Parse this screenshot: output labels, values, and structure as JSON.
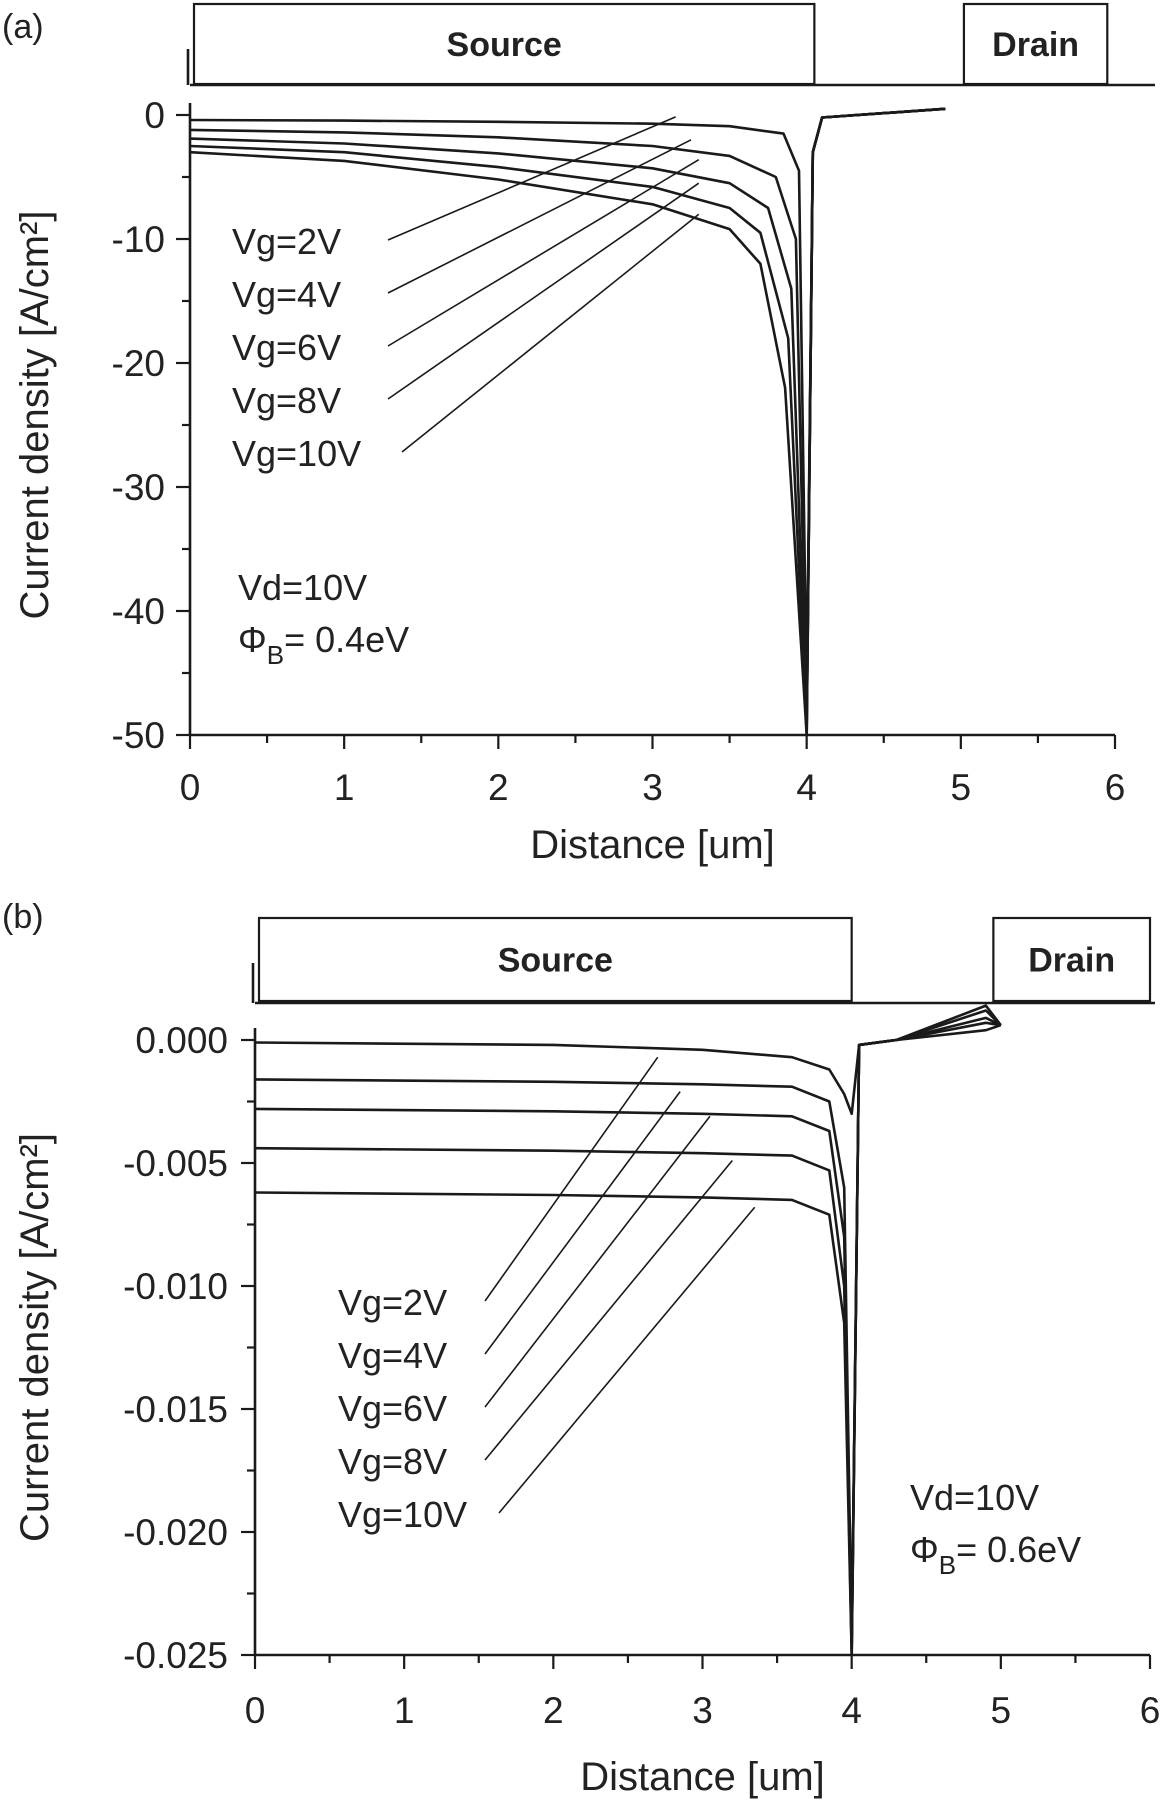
{
  "chart_data": [
    {
      "type": "line",
      "panel_label": "(a)",
      "xlabel": "Distance [um]",
      "ylabel": "Current density [A/cm²]",
      "xlim": [
        0,
        6
      ],
      "ylim": [
        -50,
        0
      ],
      "xticks": [
        0,
        1,
        2,
        3,
        4,
        5,
        6
      ],
      "xtick_labels": [
        "0",
        "1",
        "2",
        "3",
        "4",
        "5",
        "6"
      ],
      "yticks": [
        0,
        -10,
        -20,
        -30,
        -40,
        -50
      ],
      "ytick_labels": [
        "0",
        "-10",
        "-20",
        "-30",
        "-40",
        "-50"
      ],
      "regions": [
        {
          "label": "Source",
          "x0": 0.0,
          "x1": 4.05
        },
        {
          "label": "Drain",
          "x0": 5.02,
          "x1": 5.95
        }
      ],
      "conditions": {
        "line1": "Vd=10V",
        "line2_symbol": "Φ",
        "line2_sub": "B",
        "line2_rest": "= 0.4eV"
      },
      "series": [
        {
          "name": "Vg=2V",
          "label_text": "Vg=2V",
          "points": [
            [
              0,
              -0.4
            ],
            [
              1,
              -0.45
            ],
            [
              2,
              -0.55
            ],
            [
              3,
              -0.7
            ],
            [
              3.5,
              -0.9
            ],
            [
              3.85,
              -1.5
            ],
            [
              3.95,
              -4.5
            ],
            [
              4.0,
              -47
            ],
            [
              4.04,
              -3
            ],
            [
              4.1,
              -0.2
            ],
            [
              4.9,
              0.5
            ]
          ]
        },
        {
          "name": "Vg=4V",
          "label_text": "Vg=4V",
          "points": [
            [
              0,
              -1.2
            ],
            [
              1,
              -1.4
            ],
            [
              2,
              -1.8
            ],
            [
              3,
              -2.5
            ],
            [
              3.5,
              -3.3
            ],
            [
              3.8,
              -5
            ],
            [
              3.93,
              -10
            ],
            [
              4.0,
              -49
            ],
            [
              4.04,
              -3
            ],
            [
              4.1,
              -0.2
            ],
            [
              4.9,
              0.5
            ]
          ]
        },
        {
          "name": "Vg=6V",
          "label_text": "Vg=6V",
          "points": [
            [
              0,
              -1.9
            ],
            [
              1,
              -2.3
            ],
            [
              2,
              -3.1
            ],
            [
              3,
              -4.3
            ],
            [
              3.5,
              -5.5
            ],
            [
              3.75,
              -7.5
            ],
            [
              3.9,
              -14
            ],
            [
              4.0,
              -49.5
            ],
            [
              4.04,
              -3
            ],
            [
              4.1,
              -0.2
            ],
            [
              4.9,
              0.5
            ]
          ]
        },
        {
          "name": "Vg=8V",
          "label_text": "Vg=8V",
          "points": [
            [
              0,
              -2.5
            ],
            [
              1,
              -3.0
            ],
            [
              2,
              -4.2
            ],
            [
              3,
              -5.8
            ],
            [
              3.5,
              -7.5
            ],
            [
              3.7,
              -9.5
            ],
            [
              3.88,
              -18
            ],
            [
              4.0,
              -50
            ],
            [
              4.04,
              -3
            ],
            [
              4.1,
              -0.2
            ],
            [
              4.9,
              0.5
            ]
          ]
        },
        {
          "name": "Vg=10V",
          "label_text": "Vg=10V",
          "points": [
            [
              0,
              -3.0
            ],
            [
              1,
              -3.7
            ],
            [
              2,
              -5.2
            ],
            [
              3,
              -7.2
            ],
            [
              3.5,
              -9.2
            ],
            [
              3.7,
              -12
            ],
            [
              3.86,
              -22
            ],
            [
              4.0,
              -50
            ],
            [
              4.04,
              -3
            ],
            [
              4.1,
              -0.2
            ],
            [
              4.9,
              0.5
            ]
          ]
        }
      ],
      "leader_targets": [
        [
          3.15,
          -0.15
        ],
        [
          3.25,
          -2.0
        ],
        [
          3.3,
          -3.6
        ],
        [
          3.3,
          -5.5
        ],
        [
          3.3,
          -8.0
        ]
      ]
    },
    {
      "type": "line",
      "panel_label": "(b)",
      "xlabel": "Distance [um]",
      "ylabel": "Current density [A/cm²]",
      "xlim": [
        0,
        6
      ],
      "ylim": [
        -0.025,
        0.0
      ],
      "xticks": [
        0,
        1,
        2,
        3,
        4,
        5,
        6
      ],
      "xtick_labels": [
        "0",
        "1",
        "2",
        "3",
        "4",
        "5",
        "6"
      ],
      "yticks": [
        0.0,
        -0.005,
        -0.01,
        -0.015,
        -0.02,
        -0.025
      ],
      "ytick_labels": [
        "0.000",
        "-0.005",
        "-0.010",
        "-0.015",
        "-0.020",
        "-0.025"
      ],
      "regions": [
        {
          "label": "Source",
          "x0": 0.0,
          "x1": 4.0
        },
        {
          "label": "Drain",
          "x0": 4.95,
          "x1": 6.0
        }
      ],
      "conditions": {
        "line1": "Vd=10V",
        "line2_symbol": "Φ",
        "line2_sub": "B",
        "line2_rest": "= 0.6eV"
      },
      "series": [
        {
          "name": "Vg=2V",
          "label_text": "Vg=2V",
          "points": [
            [
              0,
              -0.0001
            ],
            [
              2,
              -0.0002
            ],
            [
              3,
              -0.0004
            ],
            [
              3.6,
              -0.0007
            ],
            [
              3.85,
              -0.0012
            ],
            [
              3.95,
              -0.0022
            ],
            [
              4.0,
              -0.003
            ],
            [
              4.05,
              -0.0002
            ],
            [
              4.3,
              0.0
            ],
            [
              4.9,
              0.0004
            ],
            [
              5.0,
              0.0006
            ]
          ]
        },
        {
          "name": "Vg=4V",
          "label_text": "Vg=4V",
          "points": [
            [
              0,
              -0.0016
            ],
            [
              2,
              -0.0017
            ],
            [
              3,
              -0.0018
            ],
            [
              3.6,
              -0.0019
            ],
            [
              3.85,
              -0.0025
            ],
            [
              3.95,
              -0.006
            ],
            [
              4.0,
              -0.0245
            ],
            [
              4.05,
              -0.0002
            ],
            [
              4.3,
              0.0
            ],
            [
              4.9,
              0.0007
            ],
            [
              5.0,
              0.0006
            ]
          ]
        },
        {
          "name": "Vg=6V",
          "label_text": "Vg=6V",
          "points": [
            [
              0,
              -0.0028
            ],
            [
              2,
              -0.0029
            ],
            [
              3,
              -0.003
            ],
            [
              3.6,
              -0.0031
            ],
            [
              3.85,
              -0.0037
            ],
            [
              3.95,
              -0.008
            ],
            [
              4.0,
              -0.0248
            ],
            [
              4.05,
              -0.0002
            ],
            [
              4.3,
              0.0
            ],
            [
              4.9,
              0.0009
            ],
            [
              5.0,
              0.0006
            ]
          ]
        },
        {
          "name": "Vg=8V",
          "label_text": "Vg=8V",
          "points": [
            [
              0,
              -0.0044
            ],
            [
              2,
              -0.0045
            ],
            [
              3,
              -0.0046
            ],
            [
              3.6,
              -0.0047
            ],
            [
              3.85,
              -0.0053
            ],
            [
              3.95,
              -0.01
            ],
            [
              4.0,
              -0.025
            ],
            [
              4.05,
              -0.0002
            ],
            [
              4.3,
              0.0
            ],
            [
              4.9,
              0.0012
            ],
            [
              5.0,
              0.0006
            ]
          ]
        },
        {
          "name": "Vg=10V",
          "label_text": "Vg=10V",
          "points": [
            [
              0,
              -0.0062
            ],
            [
              2,
              -0.0063
            ],
            [
              3,
              -0.0064
            ],
            [
              3.6,
              -0.0065
            ],
            [
              3.85,
              -0.0071
            ],
            [
              3.95,
              -0.0115
            ],
            [
              4.0,
              -0.025
            ],
            [
              4.05,
              -0.0002
            ],
            [
              4.3,
              0.0
            ],
            [
              4.9,
              0.0014
            ],
            [
              5.0,
              0.0006
            ]
          ]
        }
      ],
      "leader_targets": [
        [
          2.7,
          -0.0007
        ],
        [
          2.85,
          -0.0021
        ],
        [
          3.05,
          -0.0031
        ],
        [
          3.2,
          -0.0049
        ],
        [
          3.35,
          -0.0068
        ]
      ]
    }
  ]
}
